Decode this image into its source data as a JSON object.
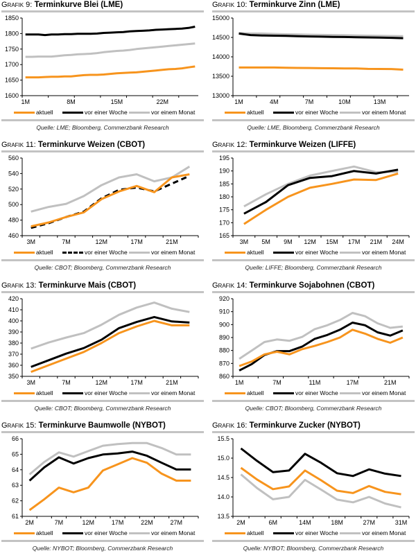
{
  "colors": {
    "aktuell": "#f7941d",
    "woche": "#000000",
    "monat": "#c0c0c0",
    "rule": "#c3c3c3"
  },
  "legend": [
    "aktuell",
    "vor einer Woche",
    "vor einem Monat"
  ],
  "chart_data": [
    {
      "type": "line",
      "prefix": "Grafik 9:",
      "title": "Terminkurve Blei (LME)",
      "source": "Quelle: LME; Bloomberg, Commerzbank Research",
      "ylim": [
        1600,
        1850
      ],
      "yticks": [
        1600,
        1650,
        1700,
        1750,
        1800,
        1850
      ],
      "xticks": [
        "1M",
        "8M",
        "15M",
        "22M"
      ],
      "n": 27,
      "xtick_index": [
        0,
        7,
        14,
        21
      ],
      "series": [
        {
          "name": "aktuell",
          "style": "solid",
          "values": [
            1659,
            1659,
            1659,
            1660,
            1661,
            1661,
            1662,
            1662,
            1664,
            1666,
            1667,
            1667,
            1668,
            1670,
            1672,
            1673,
            1674,
            1675,
            1677,
            1679,
            1681,
            1683,
            1685,
            1686,
            1688,
            1691,
            1694
          ]
        },
        {
          "name": "vor einer Woche",
          "style": "solid",
          "values": [
            1797,
            1797,
            1797,
            1795,
            1797,
            1797,
            1798,
            1798,
            1799,
            1799,
            1799,
            1800,
            1802,
            1803,
            1804,
            1805,
            1807,
            1808,
            1809,
            1810,
            1812,
            1813,
            1814,
            1815,
            1816,
            1818,
            1822
          ]
        },
        {
          "name": "vor einem Monat",
          "style": "solid",
          "values": [
            1725,
            1725,
            1726,
            1726,
            1726,
            1728,
            1730,
            1731,
            1733,
            1734,
            1735,
            1737,
            1740,
            1742,
            1744,
            1745,
            1747,
            1750,
            1752,
            1754,
            1756,
            1758,
            1760,
            1762,
            1764,
            1766,
            1768
          ]
        }
      ]
    },
    {
      "type": "line",
      "prefix": "Grafik 10:",
      "title": "Terminkurve Zinn (LME)",
      "source": "Quelle: LME, Bloomberg, Commerzbank Research",
      "ylim": [
        13000,
        15000
      ],
      "yticks": [
        13000,
        13500,
        14000,
        14500,
        15000
      ],
      "xticks": [
        "1M",
        "4M",
        "7M",
        "10M",
        "13M"
      ],
      "n": 15,
      "xtick_index": [
        0,
        3,
        6,
        9,
        12
      ],
      "series": [
        {
          "name": "aktuell",
          "style": "solid",
          "values": [
            13725,
            13725,
            13725,
            13725,
            13720,
            13715,
            13712,
            13708,
            13705,
            13702,
            13700,
            13690,
            13688,
            13685,
            13670
          ]
        },
        {
          "name": "vor einer Woche",
          "style": "solid",
          "values": [
            14600,
            14560,
            14550,
            14545,
            14540,
            14530,
            14525,
            14520,
            14515,
            14510,
            14505,
            14500,
            14495,
            14490,
            14480
          ]
        },
        {
          "name": "vor einem Monat",
          "style": "solid",
          "values": [
            14610,
            14600,
            14600,
            14590,
            14580,
            14575,
            14570,
            14565,
            14560,
            14555,
            14550,
            14545,
            14540,
            14535,
            14530
          ]
        }
      ]
    },
    {
      "type": "line",
      "prefix": "Grafik 11:",
      "title": "Terminkurve Weizen (CBOT)",
      "source": "Quelle: CBOT; Bloomberg, Commerzbank Research",
      "ylim": [
        460,
        560
      ],
      "yticks": [
        460,
        480,
        500,
        520,
        540,
        560
      ],
      "xticks": [
        "3M",
        "7M",
        "12M",
        "17M",
        "21M"
      ],
      "n": 10,
      "xtick_index": [
        0,
        2,
        4,
        6,
        8
      ],
      "series": [
        {
          "name": "aktuell",
          "style": "solid",
          "values": [
            472,
            477,
            484,
            490,
            507,
            517,
            524,
            516,
            535,
            539
          ]
        },
        {
          "name": "vor einer Woche",
          "style": "dashed",
          "values": [
            470,
            476,
            484,
            491,
            508,
            519,
            522,
            517,
            527,
            537
          ]
        },
        {
          "name": "vor einem Monat",
          "style": "solid",
          "values": [
            491,
            497,
            501,
            511,
            525,
            535,
            539,
            530,
            535,
            549
          ]
        }
      ]
    },
    {
      "type": "line",
      "prefix": "Grafik 12:",
      "title": "Terminkurve Weizen (LIFFE)",
      "source": "Quelle: LIFFE; Bloomberg, Commerzbank Research",
      "ylim": [
        165,
        195
      ],
      "yticks": [
        165,
        170,
        175,
        180,
        185,
        190,
        195
      ],
      "xticks": [
        "3M",
        "5M",
        "9M",
        "12M",
        "15M",
        "17M",
        "21M",
        "24M"
      ],
      "n": 8,
      "xtick_index": [
        0,
        1,
        2,
        3,
        4,
        5,
        6,
        7
      ],
      "series": [
        {
          "name": "aktuell",
          "style": "solid",
          "values": [
            169.5,
            175,
            180,
            183.5,
            185,
            186.7,
            186.5,
            189
          ]
        },
        {
          "name": "vor einer Woche",
          "style": "solid",
          "values": [
            173.5,
            178,
            184.5,
            187.3,
            188,
            190,
            189,
            190.5
          ]
        },
        {
          "name": "vor einem Monat",
          "style": "solid",
          "values": [
            176.3,
            181,
            185,
            188.2,
            190,
            191.7,
            189.5,
            189.7
          ]
        }
      ]
    },
    {
      "type": "line",
      "prefix": "Grafik 13:",
      "title": "Terminkurve Mais (CBOT)",
      "source": "Quelle: CBOT; Bloomberg, Commerzbank Research",
      "ylim": [
        350,
        420
      ],
      "yticks": [
        350,
        360,
        370,
        380,
        390,
        400,
        410,
        420
      ],
      "xticks": [
        "3M",
        "7M",
        "12M",
        "17M",
        "21M"
      ],
      "n": 10,
      "xtick_index": [
        0,
        2,
        4,
        6,
        8
      ],
      "series": [
        {
          "name": "aktuell",
          "style": "solid",
          "values": [
            354,
            360,
            366,
            372,
            380,
            389,
            395,
            400,
            396,
            396
          ]
        },
        {
          "name": "vor einer Woche",
          "style": "solid",
          "values": [
            358.5,
            364.5,
            370.5,
            375.5,
            383,
            393.5,
            399,
            403.5,
            399.5,
            398.5
          ]
        },
        {
          "name": "vor einem Monat",
          "style": "solid",
          "values": [
            375,
            380.5,
            385,
            389,
            396.5,
            405.5,
            412,
            416.5,
            411,
            408
          ]
        }
      ]
    },
    {
      "type": "line",
      "prefix": "Grafik 14:",
      "title": "Terminkurve Sojabohnen (CBOT)",
      "source": "Quelle: CBOT; Bloomberg, Commerzbank Research",
      "ylim": [
        860,
        920
      ],
      "yticks": [
        860,
        870,
        880,
        890,
        900,
        910,
        920
      ],
      "xticks": [
        "1M",
        "7M",
        "11M",
        "17M",
        "21M"
      ],
      "n": 14,
      "xtick_index": [
        0,
        3,
        6,
        9,
        12
      ],
      "series": [
        {
          "name": "aktuell",
          "style": "solid",
          "values": [
            868,
            871.5,
            877,
            879,
            877,
            881,
            883.5,
            886.5,
            890,
            896,
            893,
            889,
            886,
            890
          ]
        },
        {
          "name": "vor einer Woche",
          "style": "solid",
          "values": [
            864.5,
            869.5,
            876.5,
            879.5,
            879.5,
            883,
            889,
            892,
            896,
            901.5,
            899.5,
            894,
            891.5,
            895.5
          ]
        },
        {
          "name": "vor einem Monat",
          "style": "solid",
          "values": [
            873.5,
            880,
            886.5,
            888.5,
            887.5,
            890.5,
            896.5,
            899.5,
            903.5,
            909,
            906.5,
            901,
            897.5,
            898.5
          ]
        }
      ]
    },
    {
      "type": "line",
      "prefix": "Grafik 15:",
      "title": "Terminkurve Baumwolle (NYBOT)",
      "source": "Quelle: NYBOT; Bloomberg, Commerzbank Research",
      "ylim": [
        61,
        66
      ],
      "yticks": [
        61,
        62,
        63,
        64,
        65,
        66
      ],
      "xticks": [
        "2M",
        "7M",
        "12M",
        "17M",
        "22M",
        "27M"
      ],
      "n": 12,
      "xtick_index": [
        0,
        2,
        4,
        6,
        8,
        10
      ],
      "series": [
        {
          "name": "aktuell",
          "style": "solid",
          "values": [
            61.4,
            62.1,
            62.85,
            62.55,
            62.85,
            63.95,
            64.35,
            64.75,
            64.45,
            63.75,
            63.3,
            63.3
          ]
        },
        {
          "name": "vor einer Woche",
          "style": "solid",
          "values": [
            63.3,
            64.15,
            64.8,
            64.4,
            64.75,
            64.98,
            65.05,
            65.17,
            64.9,
            64.45,
            64.02,
            64.02
          ]
        },
        {
          "name": "vor einem Monat",
          "style": "solid",
          "values": [
            63.7,
            64.5,
            65.12,
            64.85,
            65.2,
            65.55,
            65.65,
            65.72,
            65.72,
            65.4,
            64.98,
            64.98
          ]
        }
      ]
    },
    {
      "type": "line",
      "prefix": "Grafik 16:",
      "title": "Terminkurve Zucker (NYBOT)",
      "source": "Quelle: NYBOT; Bloomberg, Commerzbank Research",
      "ylim": [
        13.5,
        15.5
      ],
      "yticks": [
        "13.5",
        "14.0",
        "14.5",
        "15.0",
        "15.5"
      ],
      "xticks": [
        "2M",
        "6M",
        "14M",
        "18M",
        "27M",
        "31M"
      ],
      "n": 11,
      "xtick_index": [
        0,
        2,
        4,
        6,
        8,
        10
      ],
      "series": [
        {
          "name": "aktuell",
          "style": "solid",
          "values": [
            14.75,
            14.45,
            14.2,
            14.27,
            14.68,
            14.43,
            14.16,
            14.1,
            14.28,
            14.13,
            14.07
          ]
        },
        {
          "name": "vor einer Woche",
          "style": "solid",
          "values": [
            15.25,
            14.93,
            14.64,
            14.68,
            15.11,
            14.88,
            14.61,
            14.54,
            14.71,
            14.6,
            14.54
          ]
        },
        {
          "name": "vor einem Monat",
          "style": "solid",
          "values": [
            14.58,
            14.23,
            13.94,
            14.0,
            14.44,
            14.19,
            13.93,
            13.86,
            14.0,
            13.83,
            13.73
          ]
        }
      ]
    }
  ]
}
